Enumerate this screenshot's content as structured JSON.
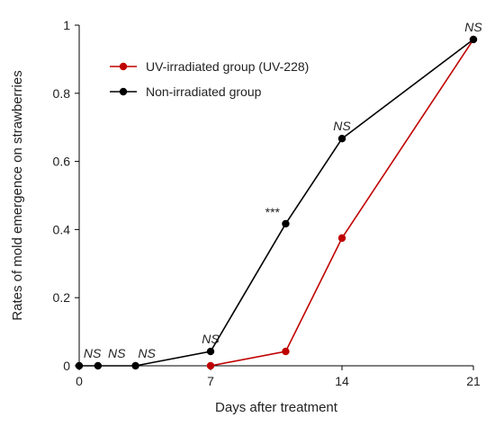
{
  "chart_data": {
    "type": "line",
    "xlabel": "Days after treatment",
    "ylabel": "Rates of mold emergence on strawberries",
    "xlim": [
      0,
      21
    ],
    "ylim": [
      0,
      1
    ],
    "xticks": [
      0,
      7,
      14,
      21
    ],
    "yticks": [
      0,
      0.2,
      0.4,
      0.6,
      0.8,
      1
    ],
    "ytick_labels": [
      "0",
      "0.2",
      "0.4",
      "0.6",
      "0.8",
      "1"
    ],
    "grid": false,
    "legend_position": "top-left",
    "series": [
      {
        "name": "UV-irradiated group (UV-228)",
        "color": "#c00000",
        "x": [
          7,
          11,
          14,
          21
        ],
        "y": [
          0,
          0.042,
          0.375,
          0.958
        ]
      },
      {
        "name": "Non-irradiated group",
        "color": "#000000",
        "x": [
          0,
          1,
          3,
          7,
          11,
          14,
          21
        ],
        "y": [
          0,
          0,
          0,
          0.042,
          0.417,
          0.667,
          0.958
        ]
      }
    ],
    "annotations": [
      {
        "text": "NS",
        "x": 0.7,
        "y": 0,
        "italic": true
      },
      {
        "text": "NS",
        "x": 2,
        "y": 0,
        "italic": true
      },
      {
        "text": "NS",
        "x": 3.6,
        "y": 0,
        "italic": true
      },
      {
        "text": "NS",
        "x": 7,
        "y": 0.042,
        "italic": true
      },
      {
        "text": "***",
        "x": 10.3,
        "y": 0.417,
        "italic": false
      },
      {
        "text": "NS",
        "x": 14,
        "y": 0.667,
        "italic": true
      },
      {
        "text": "NS",
        "x": 21,
        "y": 0.958,
        "italic": true
      }
    ]
  }
}
